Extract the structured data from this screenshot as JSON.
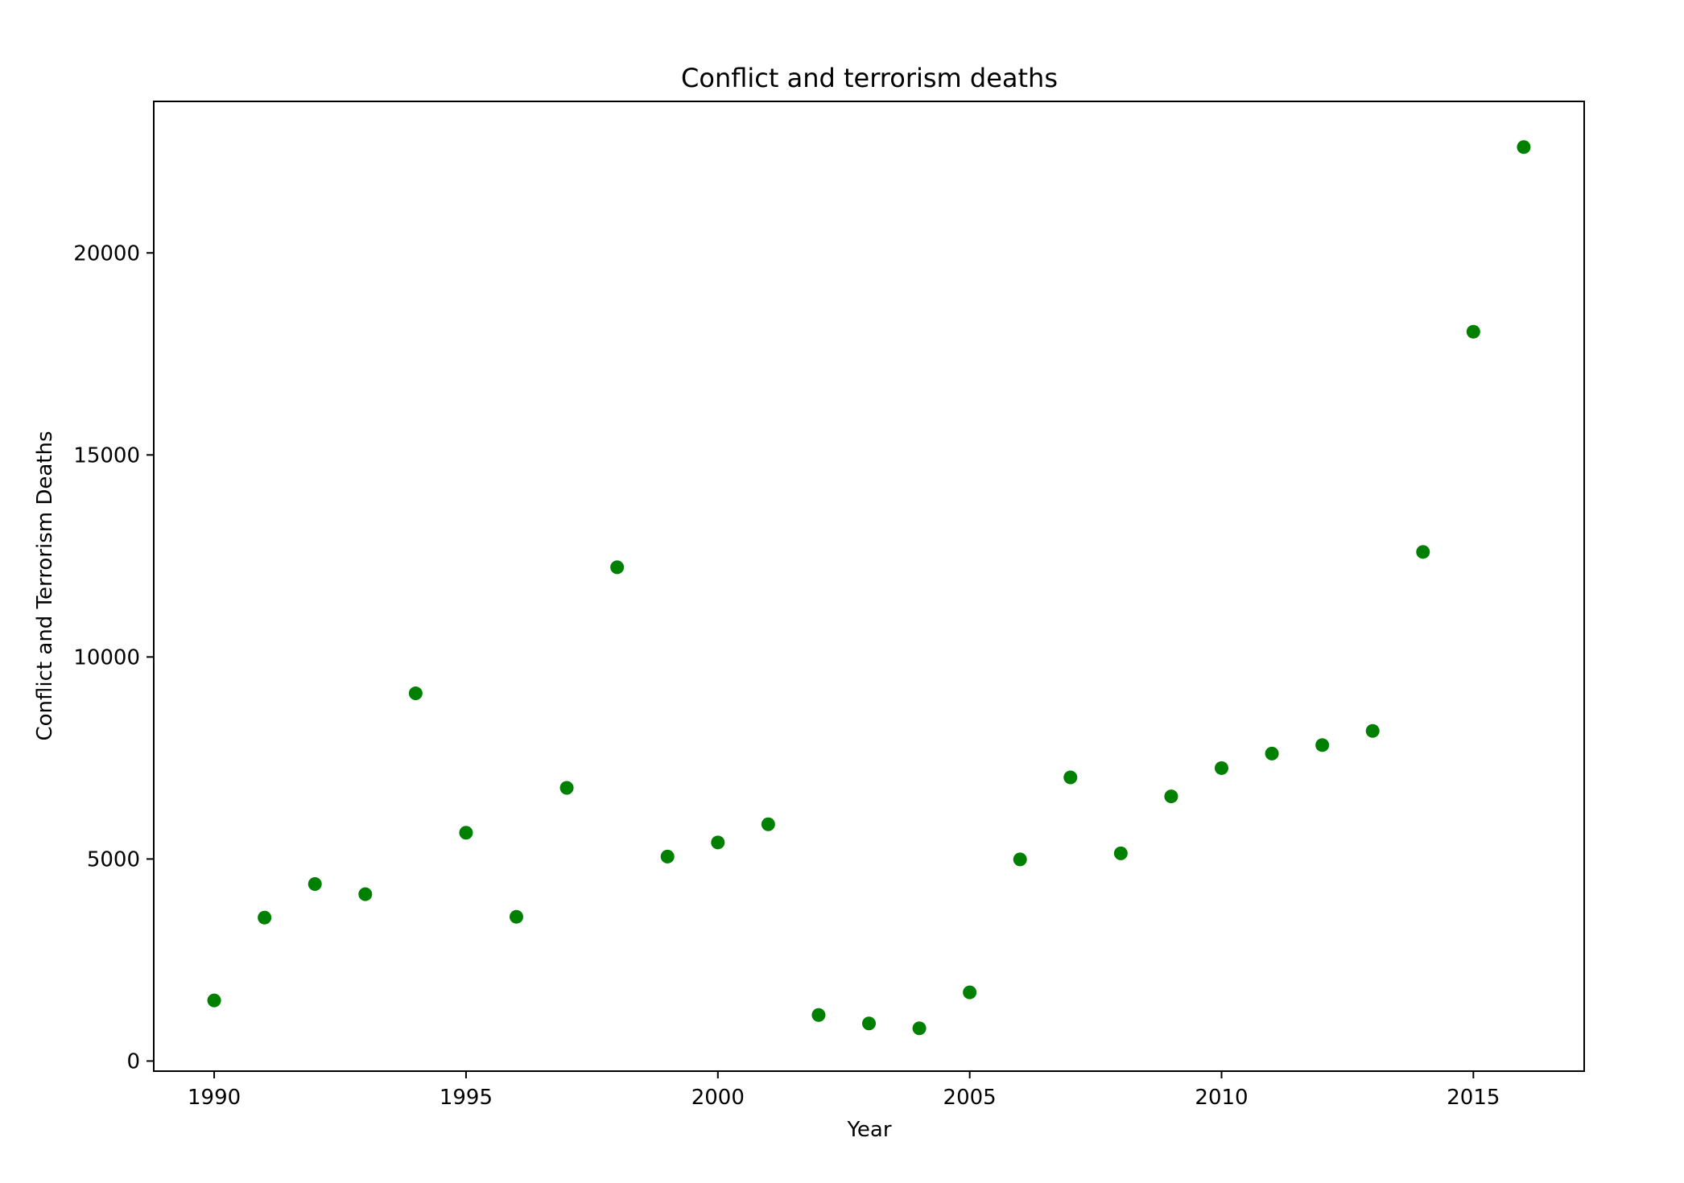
{
  "chart_data": {
    "type": "scatter",
    "title": "Conflict and terrorism deaths",
    "xlabel": "Year",
    "ylabel": "Conflict and Terrorism Deaths",
    "xlim": [
      1988.8,
      2017.2
    ],
    "ylim": [
      -250,
      23750
    ],
    "xticks": [
      1990,
      1995,
      2000,
      2005,
      2010,
      2015
    ],
    "yticks": [
      0,
      5000,
      10000,
      15000,
      20000
    ],
    "grid": false,
    "legend": "none",
    "color": "#008000",
    "series": [
      {
        "x": [
          1990,
          1991,
          1992,
          1993,
          1994,
          1995,
          1996,
          1997,
          1998,
          1999,
          2000,
          2001,
          2002,
          2003,
          2004,
          2005,
          2006,
          2007,
          2008,
          2009,
          2010,
          2011,
          2012,
          2013,
          2014,
          2015,
          2016
        ],
        "y": [
          1500,
          3550,
          4380,
          4130,
          9100,
          5650,
          3570,
          6760,
          12220,
          5060,
          5410,
          5860,
          1140,
          930,
          810,
          1700,
          4990,
          7020,
          5140,
          6550,
          7250,
          7610,
          7820,
          8170,
          12600,
          18050,
          22620
        ]
      }
    ]
  }
}
